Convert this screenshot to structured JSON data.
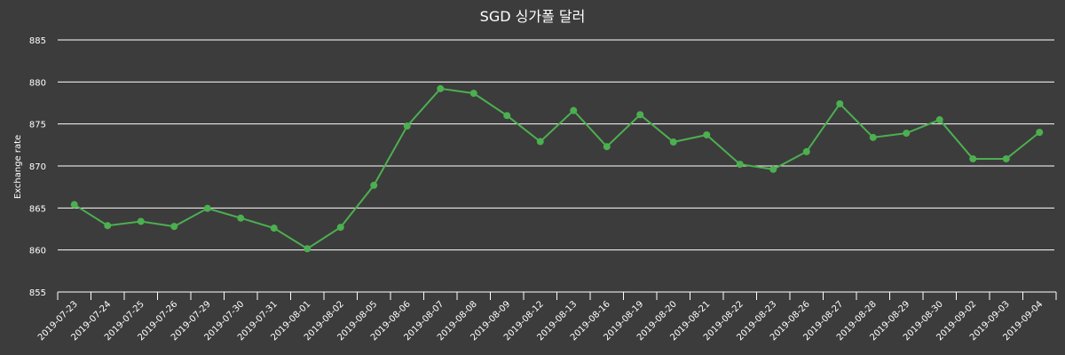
{
  "chart_data": {
    "type": "line",
    "title": "SGD 싱가폴 달러",
    "xlabel": "",
    "ylabel": "Exchange rate",
    "ylim": [
      855,
      885
    ],
    "yticks": [
      855,
      860,
      865,
      870,
      875,
      880,
      885
    ],
    "grid": true,
    "legend": null,
    "categories": [
      "2019-07-23",
      "2019-07-24",
      "2019-07-25",
      "2019-07-26",
      "2019-07-29",
      "2019-07-30",
      "2019-07-31",
      "2019-08-01",
      "2019-08-02",
      "2019-08-05",
      "2019-08-06",
      "2019-08-07",
      "2019-08-08",
      "2019-08-09",
      "2019-08-12",
      "2019-08-13",
      "2019-08-16",
      "2019-08-19",
      "2019-08-20",
      "2019-08-21",
      "2019-08-22",
      "2019-08-23",
      "2019-08-26",
      "2019-08-27",
      "2019-08-28",
      "2019-08-29",
      "2019-08-30",
      "2019-09-02",
      "2019-09-03",
      "2019-09-04"
    ],
    "series": [
      {
        "name": "SGD",
        "color": "#4caf50",
        "values": [
          865.4,
          862.9,
          863.4,
          862.8,
          864.95,
          863.8,
          862.6,
          860.15,
          862.7,
          867.7,
          874.75,
          879.2,
          878.65,
          876.0,
          872.9,
          876.6,
          872.3,
          876.1,
          872.85,
          873.7,
          870.2,
          869.6,
          871.7,
          877.4,
          873.4,
          873.9,
          875.5,
          870.85,
          870.85,
          874.0
        ]
      }
    ]
  },
  "colors": {
    "background": "#3c3c3c",
    "text": "#ffffff",
    "grid": "#ffffff",
    "line": "#4caf50"
  }
}
